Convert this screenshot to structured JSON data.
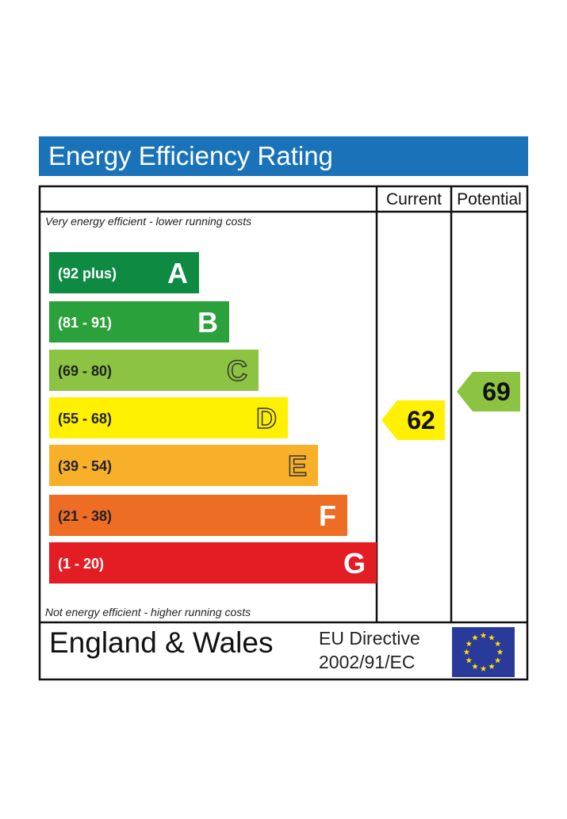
{
  "title": "Energy Efficiency Rating",
  "columns": {
    "current": "Current",
    "potential": "Potential"
  },
  "top_note": "Very energy efficient - lower running costs",
  "bottom_note": "Not energy efficient - higher running costs",
  "footer": {
    "region": "England & Wales",
    "directive_line1": "EU Directive",
    "directive_line2": "2002/91/EC",
    "flag_icon": "eu-flag-icon"
  },
  "chart_data": {
    "type": "bar",
    "bands": [
      {
        "letter": "A",
        "range": "(92 plus)",
        "color": "#0e8a43"
      },
      {
        "letter": "B",
        "range": "(81 - 91)",
        "color": "#2ba13b"
      },
      {
        "letter": "C",
        "range": "(69 - 80)",
        "color": "#8cc342"
      },
      {
        "letter": "D",
        "range": "(55 - 68)",
        "color": "#fff101"
      },
      {
        "letter": "E",
        "range": "(39 - 54)",
        "color": "#f8b02a"
      },
      {
        "letter": "F",
        "range": "(21 - 38)",
        "color": "#ee6d24"
      },
      {
        "letter": "G",
        "range": "(1 - 20)",
        "color": "#e31d23"
      }
    ],
    "current": {
      "value": 62,
      "band": "D",
      "color": "#fff101"
    },
    "potential": {
      "value": 69,
      "band": "C",
      "color": "#8cc342"
    }
  }
}
